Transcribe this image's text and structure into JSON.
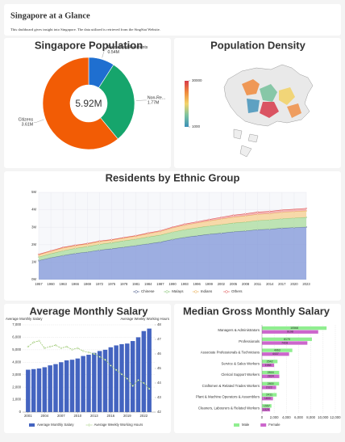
{
  "header": {
    "title": "Singapore at a Glance",
    "subtitle": "This dashboard gives insight into Singapore. The data utilized is retrieved from the SingStat Website."
  },
  "chart_data": [
    {
      "type": "pie",
      "title": "Singapore Population",
      "categories": [
        "Permanent Residents",
        "Non-Re...",
        "Citizens"
      ],
      "values": [
        0.54,
        1.77,
        3.61
      ],
      "value_labels": [
        "0.54M",
        "1.77M",
        "3.61M"
      ],
      "colors": [
        "#1f6fd0",
        "#16a56c",
        "#f25c05"
      ],
      "center_label": "5.92M"
    },
    {
      "type": "choropleth",
      "title": "Population Density",
      "colorbar_ticks": [
        1000,
        30000
      ],
      "colorscale": [
        "#3b8fb8",
        "#7cc3a0",
        "#f2d36b",
        "#f08a3c",
        "#d73a4a"
      ]
    },
    {
      "type": "area",
      "stacked": true,
      "title": "Residents by Ethnic Group",
      "x": [
        1957,
        1960,
        1963,
        1966,
        1969,
        1972,
        1975,
        1978,
        1981,
        1984,
        1987,
        1990,
        1993,
        1996,
        1999,
        2002,
        2005,
        2008,
        2011,
        2014,
        2017,
        2020,
        2023
      ],
      "series": [
        {
          "name": "Chinese",
          "color": "#7f95d8",
          "line": "#4a5a8a",
          "values": [
            1.09,
            1.25,
            1.38,
            1.5,
            1.58,
            1.69,
            1.77,
            1.86,
            1.95,
            2.05,
            2.15,
            2.3,
            2.42,
            2.51,
            2.6,
            2.66,
            2.74,
            2.79,
            2.86,
            2.89,
            2.95,
            2.98,
            3.01
          ]
        },
        {
          "name": "Malays",
          "color": "#a9dc9c",
          "line": "#7cbf6a",
          "values": [
            0.2,
            0.23,
            0.27,
            0.29,
            0.31,
            0.33,
            0.34,
            0.36,
            0.37,
            0.39,
            0.4,
            0.42,
            0.44,
            0.46,
            0.47,
            0.49,
            0.5,
            0.51,
            0.52,
            0.53,
            0.54,
            0.55,
            0.56
          ]
        },
        {
          "name": "Indians",
          "color": "#f7cf8e",
          "line": "#e9a94a",
          "values": [
            0.13,
            0.14,
            0.16,
            0.15,
            0.15,
            0.16,
            0.15,
            0.16,
            0.17,
            0.19,
            0.21,
            0.24,
            0.26,
            0.27,
            0.29,
            0.32,
            0.34,
            0.35,
            0.36,
            0.36,
            0.37,
            0.37,
            0.37
          ]
        },
        {
          "name": "Others",
          "color": "#f3a0a0",
          "line": "#e05a5a",
          "values": [
            0.03,
            0.03,
            0.04,
            0.03,
            0.03,
            0.03,
            0.03,
            0.03,
            0.03,
            0.04,
            0.04,
            0.05,
            0.06,
            0.07,
            0.08,
            0.1,
            0.11,
            0.12,
            0.13,
            0.13,
            0.13,
            0.13,
            0.14
          ]
        }
      ],
      "xlim": [
        1957,
        2023
      ],
      "xticks": [
        1957,
        1960,
        1963,
        1966,
        1969,
        1972,
        1975,
        1978,
        1981,
        1984,
        1987,
        1990,
        1993,
        1996,
        1999,
        2002,
        2005,
        2008,
        2011,
        2014,
        2017,
        2020,
        2023
      ],
      "ylim": [
        0,
        5
      ],
      "yticks": [
        {
          "value": 0,
          "label": "0M"
        },
        {
          "value": 1,
          "label": "1M"
        },
        {
          "value": 2,
          "label": "2M"
        },
        {
          "value": 3,
          "label": "3M"
        },
        {
          "value": 4,
          "label": "4M"
        },
        {
          "value": 5,
          "label": "5M"
        }
      ],
      "grid": true,
      "legend": "bottom"
    },
    {
      "type": "bar_line",
      "title": "Average Monthly Salary",
      "y_label": "Average Monthly Salary",
      "y2_label": "Average Weekly Working Hours",
      "x": [
        2001,
        2002,
        2003,
        2004,
        2005,
        2006,
        2007,
        2008,
        2009,
        2010,
        2011,
        2012,
        2013,
        2014,
        2015,
        2016,
        2017,
        2018,
        2019,
        2020,
        2021,
        2022,
        2023
      ],
      "series": [
        {
          "name": "Average Monthly Salary",
          "color": "#4464c0",
          "axis": "y",
          "values": [
            3400,
            3450,
            3500,
            3600,
            3750,
            3850,
            4000,
            4150,
            4200,
            4300,
            4500,
            4600,
            4750,
            4900,
            5000,
            5200,
            5350,
            5450,
            5500,
            5700,
            6000,
            6500,
            6700
          ]
        },
        {
          "name": "Average Weekly Working Hours",
          "color": "#8cbf5a",
          "axis": "y2",
          "values": [
            46.5,
            46.8,
            46.9,
            46.4,
            46.5,
            46.6,
            46.4,
            46.5,
            46.3,
            46.4,
            46.2,
            46.1,
            46.0,
            45.8,
            45.6,
            45.2,
            44.9,
            44.6,
            44.3,
            43.8,
            44.2,
            44.0,
            43.6
          ]
        }
      ],
      "xlim": [
        2000,
        2024
      ],
      "xticks": [
        2001,
        2004,
        2007,
        2010,
        2013,
        2016,
        2019,
        2022
      ],
      "ylim": [
        0,
        7000
      ],
      "yticks": [
        0,
        {
          "value": 1000,
          "label": "1,000"
        },
        {
          "value": 2000,
          "label": "2,000"
        },
        {
          "value": 3000,
          "label": "3,000"
        },
        {
          "value": 4000,
          "label": "4,000"
        },
        {
          "value": 5000,
          "label": "5,000"
        },
        {
          "value": 6000,
          "label": "6,000"
        },
        {
          "value": 7000,
          "label": "7,000"
        }
      ],
      "y2lim": [
        42,
        48
      ],
      "y2ticks": [
        42,
        43,
        44,
        45,
        46,
        47,
        48
      ],
      "grid": true,
      "legend": "bottom"
    },
    {
      "type": "hbar",
      "title": "Median Gross Monthly Salary",
      "categories": [
        "Managers & Administrators",
        "Professionals",
        "Associate Professionals & Technicians",
        "Service & Sales Workers",
        "Clerical Support Workers",
        "Craftsmen & Related Trades Workers",
        "Plant & Machine Operators & Assemblers",
        "Cleaners, Labourers & Related Workers"
      ],
      "series": [
        {
          "name": "Male",
          "color": "#90ee90",
          "values": [
            10568,
            8170,
            4963,
            2542,
            2816,
            2800,
            2411,
            1557
          ]
        },
        {
          "name": "Female",
          "color": "#cc66cc",
          "values": [
            9198,
            7428,
            4437,
            1988,
            2834,
            2322,
            1800,
            1329
          ]
        }
      ],
      "xlim": [
        0,
        12000
      ],
      "xticks": [
        0,
        {
          "value": 2000,
          "label": "2,000"
        },
        {
          "value": 4000,
          "label": "4,000"
        },
        {
          "value": 6000,
          "label": "6,000"
        },
        {
          "value": 8000,
          "label": "8,000"
        },
        {
          "value": 10000,
          "label": "10,000"
        },
        {
          "value": 12000,
          "label": "12,000"
        }
      ],
      "grid": true,
      "legend": "bottom"
    }
  ]
}
